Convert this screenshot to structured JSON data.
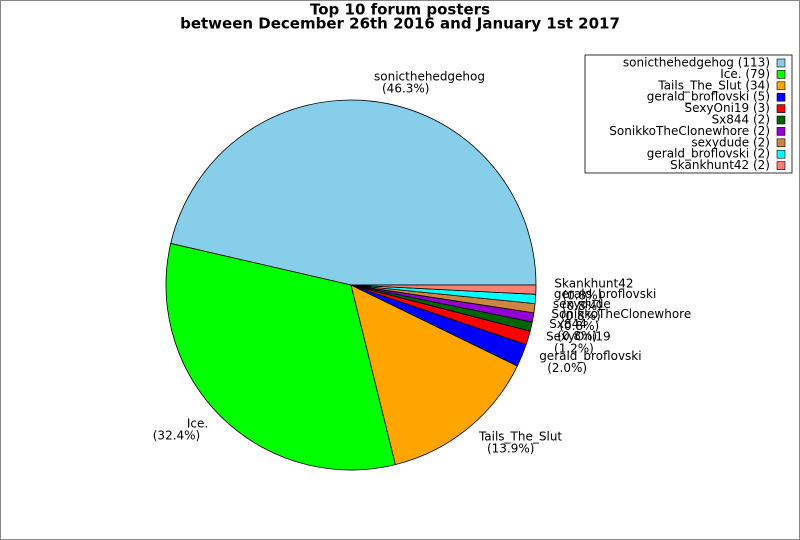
{
  "chart_data": {
    "type": "pie",
    "title": [
      "Top 10 forum posters",
      "between December 26th 2016 and January 1st 2017"
    ],
    "categories": [
      "sonicthehedgehog",
      "Ice.",
      "Tails_The_Slut",
      "gerald_broflovski",
      "SexyOni19",
      "Sx844",
      "SonikkoTheClonewhore",
      "sexydude",
      "gerald_broflovski",
      "Skankhunt42"
    ],
    "values": [
      46.3,
      32.4,
      13.9,
      2.0,
      1.2,
      0.8,
      0.8,
      0.8,
      0.8,
      0.8
    ],
    "value_labels": [
      "(46.3%)",
      "(32.4%)",
      "(13.9%)",
      "(2.0%)",
      "(1.2%)",
      "(0.8%)",
      "(0.8%)",
      "(0.8%)",
      "(0.8%)",
      "(0.8%)"
    ],
    "legend_labels": [
      "sonicthehedgehog (113)",
      "Ice. (79)",
      "Tails_The_Slut (34)",
      "gerald_broflovski (5)",
      "SexyOni19 (3)",
      "Sx844 (2)",
      "SonikkoTheClonewhore (2)",
      "sexydude (2)",
      "gerald_broflovski (2)",
      "Skankhunt42 (2)"
    ],
    "colors": [
      "#87ceeb",
      "#00ff00",
      "#ffa500",
      "#0000ff",
      "#ff0000",
      "#006400",
      "#9400d3",
      "#cd853f",
      "#00ffff",
      "#fa8072"
    ],
    "legend": "upper right"
  }
}
